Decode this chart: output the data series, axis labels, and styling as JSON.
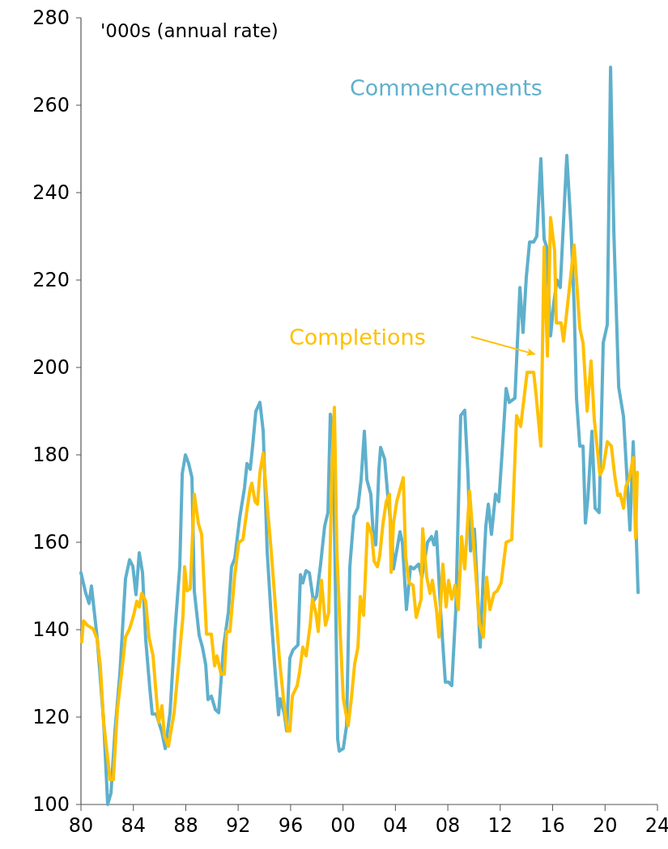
{
  "chart_data": {
    "type": "line",
    "ylabel": "'000s (annual rate)",
    "xlim": [
      1980,
      2024
    ],
    "xticks": [
      {
        "value": 1980,
        "label": "80"
      },
      {
        "value": 1984,
        "label": "84"
      },
      {
        "value": 1988,
        "label": "88"
      },
      {
        "value": 1992,
        "label": "92"
      },
      {
        "value": 1996,
        "label": "96"
      },
      {
        "value": 2000,
        "label": "00"
      },
      {
        "value": 2004,
        "label": "04"
      },
      {
        "value": 2008,
        "label": "08"
      },
      {
        "value": 2012,
        "label": "12"
      },
      {
        "value": 2016,
        "label": "16"
      },
      {
        "value": 2020,
        "label": "20"
      },
      {
        "value": 2024,
        "label": "24"
      }
    ],
    "ylim": [
      100,
      280
    ],
    "yticks": [
      100,
      120,
      140,
      160,
      180,
      200,
      220,
      240,
      260,
      280
    ],
    "grid": false,
    "legend": "top",
    "line_style": "solid",
    "marker": "none",
    "series": [
      {
        "name": "Commencements",
        "color": "#5fb0cc",
        "x": [
          1980.0,
          1980.37,
          1980.62,
          1980.8,
          1981.24,
          1981.73,
          1982.04,
          1982.29,
          1982.6,
          1982.97,
          1983.4,
          1983.71,
          1983.96,
          1984.2,
          1984.45,
          1984.7,
          1984.94,
          1985.25,
          1985.44,
          1985.75,
          1986.18,
          1986.43,
          1986.8,
          1987.17,
          1987.54,
          1987.73,
          1987.97,
          1988.22,
          1988.47,
          1988.65,
          1989.02,
          1989.27,
          1989.52,
          1989.7,
          1989.95,
          1990.26,
          1990.51,
          1990.88,
          1991.25,
          1991.49,
          1991.74,
          1992.11,
          1992.48,
          1992.67,
          1992.92,
          1993.1,
          1993.35,
          1993.66,
          1993.91,
          1994.21,
          1994.52,
          1994.83,
          1995.08,
          1995.2,
          1995.51,
          1995.7,
          1995.94,
          1996.19,
          1996.56,
          1996.75,
          1996.93,
          1997.18,
          1997.43,
          1997.74,
          1997.98,
          1998.29,
          1998.6,
          1998.85,
          1999.03,
          1999.22,
          1999.41,
          1999.59,
          1999.71,
          2000.02,
          2000.27,
          2000.52,
          2000.83,
          2001.14,
          2001.38,
          2001.63,
          2001.82,
          2002.12,
          2002.31,
          2002.5,
          2002.74,
          2002.87,
          2003.18,
          2003.42,
          2003.67,
          2003.85,
          2004.35,
          2004.53,
          2004.84,
          2005.15,
          2005.4,
          2005.77,
          2006.02,
          2006.45,
          2006.76,
          2006.95,
          2007.13,
          2007.44,
          2007.81,
          2008.06,
          2008.3,
          2008.61,
          2008.98,
          2009.29,
          2009.54,
          2009.73,
          2010.03,
          2010.47,
          2010.71,
          2010.9,
          2011.09,
          2011.33,
          2011.64,
          2011.89,
          2012.14,
          2012.45,
          2012.69,
          2013.12,
          2013.5,
          2013.74,
          2013.99,
          2014.24,
          2014.55,
          2014.79,
          2015.1,
          2015.35,
          2015.54,
          2015.84,
          2016.09,
          2016.33,
          2016.58,
          2017.08,
          2017.39,
          2017.64,
          2017.82,
          2018.07,
          2018.32,
          2018.5,
          2018.69,
          2019.0,
          2019.24,
          2019.55,
          2019.86,
          2020.17,
          2020.42,
          2020.67,
          2021.04,
          2021.41,
          2021.9,
          2022.15,
          2022.52
        ],
        "values": [
          153,
          148.3,
          146,
          150,
          138,
          119,
          100,
          102.6,
          117,
          130,
          151.7,
          156,
          154.5,
          148,
          157.6,
          153,
          137.8,
          126.7,
          120.7,
          120.7,
          116.5,
          112.8,
          121,
          139.6,
          154.4,
          175.7,
          180,
          178,
          174.8,
          148.9,
          138.7,
          136,
          132,
          124,
          124.8,
          121.7,
          121,
          136,
          144,
          154.4,
          156.3,
          165.5,
          172.4,
          178,
          176.7,
          182,
          190,
          192,
          185.4,
          158,
          142.8,
          130,
          120.5,
          124.2,
          121,
          116.8,
          133.5,
          135.4,
          136.5,
          152.6,
          150.7,
          153.5,
          153,
          146.5,
          147.6,
          155,
          163.7,
          166.8,
          189.3,
          186.8,
          152,
          115,
          112.2,
          112.8,
          118,
          154.4,
          166,
          168,
          174.3,
          185.4,
          174.3,
          171,
          161.8,
          159.4,
          176.7,
          181.7,
          179,
          170.5,
          164,
          153.9,
          162.4,
          160,
          144.6,
          154.4,
          153.9,
          155,
          152,
          160,
          161.3,
          159.4,
          162.4,
          144.6,
          128,
          128,
          127.2,
          144.6,
          189,
          190.2,
          175.4,
          158,
          163,
          136,
          152.6,
          163.7,
          168.7,
          161.8,
          171,
          169.3,
          180.4,
          195.2,
          192,
          193,
          218.3,
          208,
          220.7,
          228.7,
          228.7,
          230,
          247.8,
          229.3,
          227.6,
          207.2,
          214.8,
          220,
          218.3,
          248.5,
          232.6,
          214,
          193,
          182,
          182,
          164.4,
          170.2,
          185.4,
          167.8,
          166.8,
          205.6,
          209.8,
          268.7,
          231,
          195.5,
          188.7,
          162.8,
          183,
          148.5
        ]
      },
      {
        "name": "Completions",
        "color": "#ffc000",
        "x": [
          1980.06,
          1980.19,
          1980.49,
          1980.93,
          1981.24,
          1981.48,
          1981.73,
          1982.22,
          1982.47,
          1982.78,
          1983.09,
          1983.4,
          1983.71,
          1984.02,
          1984.26,
          1984.45,
          1984.64,
          1984.94,
          1985.19,
          1985.5,
          1985.75,
          1985.93,
          1986.18,
          1986.37,
          1986.67,
          1987.11,
          1987.42,
          1987.79,
          1987.91,
          1988.1,
          1988.34,
          1988.65,
          1988.96,
          1989.21,
          1989.58,
          1989.95,
          1990.2,
          1990.38,
          1990.69,
          1990.94,
          1991.12,
          1991.37,
          1991.74,
          1992.05,
          1992.36,
          1992.67,
          1992.92,
          1993.04,
          1993.29,
          1993.47,
          1993.66,
          1993.91,
          1994.21,
          1994.52,
          1994.83,
          1995.14,
          1995.45,
          1995.76,
          1995.94,
          1996.13,
          1996.5,
          1996.69,
          1996.93,
          1997.18,
          1997.49,
          1997.67,
          1997.92,
          1998.11,
          1998.35,
          1998.66,
          1998.91,
          1999.16,
          1999.34,
          1999.53,
          1999.78,
          2000.02,
          2000.39,
          2000.64,
          2000.89,
          2001.14,
          2001.32,
          2001.57,
          2001.88,
          2002.19,
          2002.37,
          2002.62,
          2002.8,
          2003.05,
          2003.3,
          2003.55,
          2003.67,
          2003.85,
          2004.1,
          2004.6,
          2004.78,
          2005.03,
          2005.34,
          2005.59,
          2005.96,
          2006.08,
          2006.39,
          2006.64,
          2006.82,
          2007.13,
          2007.32,
          2007.62,
          2007.87,
          2008.06,
          2008.3,
          2008.55,
          2008.8,
          2009.05,
          2009.29,
          2009.66,
          2010.03,
          2010.41,
          2010.71,
          2010.96,
          2011.21,
          2011.52,
          2011.77,
          2012.07,
          2012.45,
          2012.88,
          2013.25,
          2013.56,
          2014.05,
          2014.3,
          2014.55,
          2014.73,
          2015.1,
          2015.35,
          2015.6,
          2015.84,
          2016.15,
          2016.28,
          2016.65,
          2016.83,
          2017.64,
          2018.07,
          2018.32,
          2018.63,
          2018.93,
          2019.18,
          2019.61,
          2019.86,
          2020.17,
          2020.48,
          2020.73,
          2020.97,
          2021.16,
          2021.41,
          2021.59,
          2021.84,
          2022.15,
          2022.33,
          2022.46
        ],
        "values": [
          137.2,
          142,
          141,
          140.2,
          137.8,
          131.7,
          118.7,
          105.7,
          105.7,
          121.7,
          129.8,
          138.3,
          140.2,
          143.3,
          146.5,
          145.2,
          148.3,
          146.5,
          138.3,
          134,
          124.8,
          118.7,
          122.6,
          115.6,
          113.3,
          121,
          131,
          143.3,
          154.4,
          148.9,
          149.4,
          171,
          164.3,
          161.8,
          139,
          139,
          131.7,
          134,
          129.8,
          129.8,
          139.6,
          139.6,
          152.6,
          160,
          160.6,
          167.4,
          172.4,
          173.5,
          169.3,
          168.7,
          176,
          180.4,
          168.7,
          158,
          145.7,
          133.5,
          124.3,
          116.8,
          116.8,
          124.8,
          127.2,
          130.4,
          136,
          134,
          141,
          147,
          143.9,
          139.6,
          151.3,
          141,
          143.9,
          176.7,
          190.9,
          158,
          139.6,
          124.3,
          118,
          124.3,
          132.2,
          136,
          147.6,
          143.3,
          164.3,
          161.8,
          155.7,
          154.4,
          156.9,
          164.3,
          169.3,
          171,
          153.1,
          164.3,
          169.3,
          174.8,
          156.9,
          150.7,
          150.2,
          142.8,
          147,
          163.1,
          152,
          148.3,
          151.3,
          144.6,
          138.3,
          155,
          145.2,
          151.3,
          147,
          150.2,
          144.6,
          161.3,
          153.9,
          171.7,
          156.9,
          141.5,
          138.3,
          152,
          144.6,
          148.3,
          148.9,
          150.7,
          160,
          160.6,
          189,
          186.5,
          198.9,
          198.9,
          198.9,
          193.9,
          182,
          227.6,
          202.6,
          234.3,
          226.7,
          210.2,
          210.2,
          206,
          228,
          209,
          205.6,
          190,
          201.5,
          188,
          175.4,
          177,
          183,
          182,
          175.4,
          170.7,
          171,
          167.8,
          172.8,
          174.4,
          179.4,
          161,
          176
        ]
      }
    ]
  }
}
